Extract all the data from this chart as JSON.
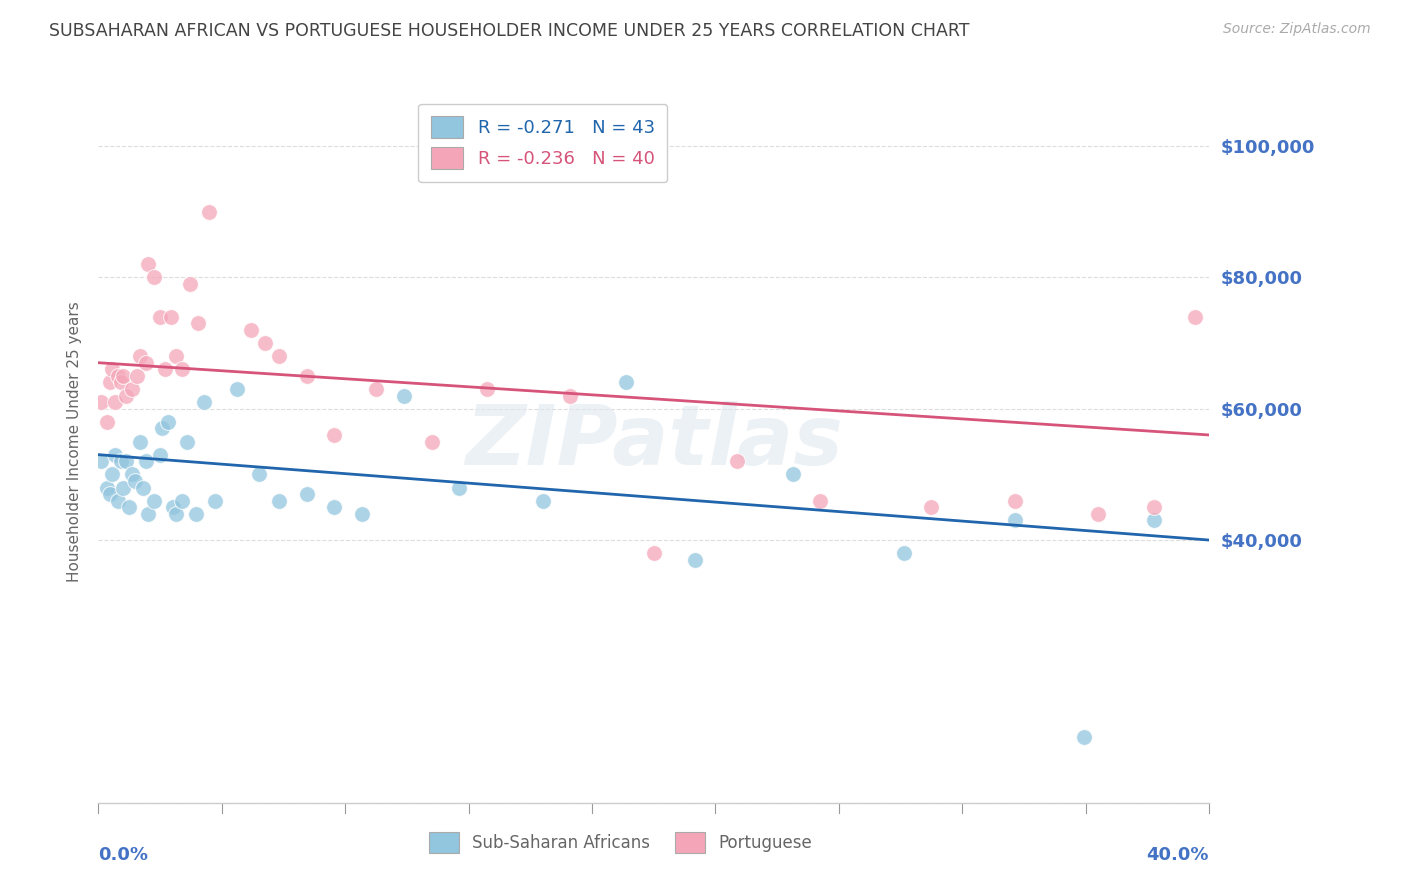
{
  "title": "SUBSAHARAN AFRICAN VS PORTUGUESE HOUSEHOLDER INCOME UNDER 25 YEARS CORRELATION CHART",
  "source": "Source: ZipAtlas.com",
  "ylabel": "Householder Income Under 25 years",
  "xlim": [
    0.0,
    0.4
  ],
  "ylim": [
    0,
    110000
  ],
  "legend1_r": "-0.271",
  "legend1_n": "43",
  "legend2_r": "-0.236",
  "legend2_n": "40",
  "legend_label1": "Sub-Saharan Africans",
  "legend_label2": "Portuguese",
  "blue_color": "#92c5de",
  "pink_color": "#f4a6b8",
  "blue_line_color": "#2166ac",
  "pink_line_color": "#d6547a",
  "title_color": "#444444",
  "axis_label_color": "#666666",
  "ytick_label_color": "#4472c4",
  "xtick_label_color": "#4472c4",
  "watermark": "ZIPatlas",
  "blue_scatter_x": [
    0.001,
    0.003,
    0.004,
    0.005,
    0.006,
    0.007,
    0.008,
    0.009,
    0.01,
    0.011,
    0.012,
    0.013,
    0.015,
    0.016,
    0.017,
    0.018,
    0.02,
    0.022,
    0.023,
    0.025,
    0.027,
    0.028,
    0.03,
    0.032,
    0.035,
    0.038,
    0.042,
    0.05,
    0.058,
    0.065,
    0.075,
    0.085,
    0.095,
    0.11,
    0.13,
    0.16,
    0.19,
    0.215,
    0.25,
    0.29,
    0.33,
    0.355,
    0.38
  ],
  "blue_scatter_y": [
    52000,
    48000,
    47000,
    50000,
    53000,
    46000,
    52000,
    48000,
    52000,
    45000,
    50000,
    49000,
    55000,
    48000,
    52000,
    44000,
    46000,
    53000,
    57000,
    58000,
    45000,
    44000,
    46000,
    55000,
    44000,
    61000,
    46000,
    63000,
    50000,
    46000,
    47000,
    45000,
    44000,
    62000,
    48000,
    46000,
    64000,
    37000,
    50000,
    38000,
    43000,
    10000,
    43000
  ],
  "pink_scatter_x": [
    0.001,
    0.003,
    0.004,
    0.005,
    0.006,
    0.007,
    0.008,
    0.009,
    0.01,
    0.012,
    0.014,
    0.015,
    0.017,
    0.018,
    0.02,
    0.022,
    0.024,
    0.026,
    0.028,
    0.03,
    0.033,
    0.036,
    0.04,
    0.055,
    0.06,
    0.065,
    0.075,
    0.085,
    0.1,
    0.12,
    0.14,
    0.17,
    0.2,
    0.23,
    0.26,
    0.3,
    0.33,
    0.36,
    0.38,
    0.395
  ],
  "pink_scatter_y": [
    61000,
    58000,
    64000,
    66000,
    61000,
    65000,
    64000,
    65000,
    62000,
    63000,
    65000,
    68000,
    67000,
    82000,
    80000,
    74000,
    66000,
    74000,
    68000,
    66000,
    79000,
    73000,
    90000,
    72000,
    70000,
    68000,
    65000,
    56000,
    63000,
    55000,
    63000,
    62000,
    38000,
    52000,
    46000,
    45000,
    46000,
    44000,
    45000,
    74000
  ],
  "blue_line_x": [
    0.0,
    0.4
  ],
  "blue_line_y": [
    53000,
    40000
  ],
  "pink_line_x": [
    0.0,
    0.4
  ],
  "pink_line_y": [
    67000,
    56000
  ]
}
